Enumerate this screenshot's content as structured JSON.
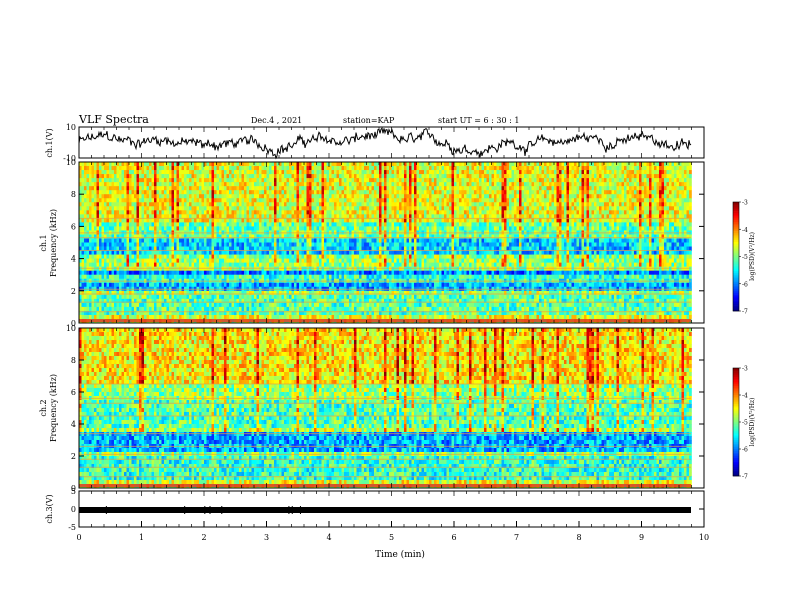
{
  "header": {
    "title": "VLF Spectra",
    "date": "Dec.4 , 2021",
    "station": "station=KAP",
    "start_ut": "start UT =  6 : 30 : 1"
  },
  "chart_data": [
    {
      "type": "line",
      "panel": "ch1-waveform",
      "ylabel": "ch.1(V)",
      "ylim": [
        -10,
        10
      ],
      "yticks": [
        "10",
        "-10"
      ],
      "xlim": [
        0,
        10
      ]
    },
    {
      "type": "heatmap",
      "panel": "ch1-spectrogram",
      "ylabel": "ch.1\nFrequency (kHz)",
      "ylim": [
        0,
        10
      ],
      "yticks": [
        "0",
        "2",
        "4",
        "6",
        "8",
        "10"
      ],
      "xlim": [
        0,
        10
      ],
      "colorbar": {
        "label": "log(PSD)(V²/Hz)",
        "range": [
          -7,
          -3
        ],
        "ticks": [
          "-3",
          "-4",
          "-5",
          "-6",
          "-7"
        ]
      }
    },
    {
      "type": "heatmap",
      "panel": "ch2-spectrogram",
      "ylabel": "ch.2\nFrequency (kHz)",
      "ylim": [
        0,
        10
      ],
      "yticks": [
        "0",
        "2",
        "4",
        "6",
        "8",
        "10"
      ],
      "xlim": [
        0,
        10
      ],
      "colorbar": {
        "label": "log(PSD)(V²/Hz)",
        "range": [
          -7,
          -3
        ],
        "ticks": [
          "-3",
          "-4",
          "-5",
          "-6",
          "-7"
        ]
      }
    },
    {
      "type": "line",
      "panel": "ch3-waveform",
      "ylabel": "ch.3(V)",
      "ylim": [
        -5,
        5
      ],
      "yticks": [
        "5",
        "0",
        "-5"
      ],
      "xlim": [
        0,
        10
      ]
    }
  ],
  "xaxis": {
    "label": "Time (min)",
    "ticks": [
      "0",
      "1",
      "2",
      "3",
      "4",
      "5",
      "6",
      "7",
      "8",
      "9",
      "10"
    ]
  }
}
